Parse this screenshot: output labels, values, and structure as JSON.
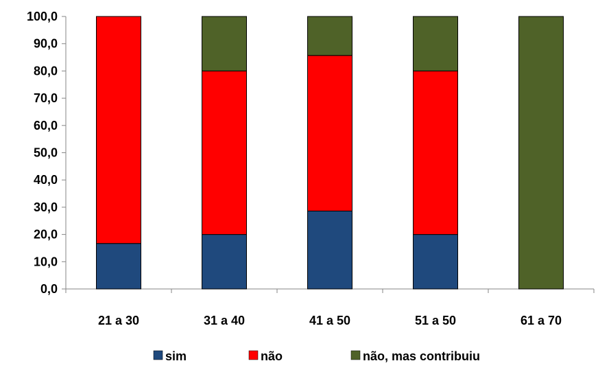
{
  "chart_data": {
    "type": "bar",
    "stacked": true,
    "categories": [
      "21 a 30",
      "31 a 40",
      "41 a 50",
      "51 a 50",
      "61 a 70"
    ],
    "series": [
      {
        "name": "sim",
        "color": "#1f497d",
        "values": [
          16.7,
          20.0,
          28.6,
          20.0,
          0.0
        ]
      },
      {
        "name": "não",
        "color": "#ff0000",
        "values": [
          83.3,
          60.0,
          57.1,
          60.0,
          0.0
        ]
      },
      {
        "name": "não, mas contribuiu",
        "color": "#4f6228",
        "values": [
          0.0,
          20.0,
          14.3,
          20.0,
          100.0
        ]
      }
    ],
    "ylim": [
      0,
      100
    ],
    "yticks": [
      "0,0",
      "10,0",
      "20,0",
      "30,0",
      "40,0",
      "50,0",
      "60,0",
      "70,0",
      "80,0",
      "90,0",
      "100,0"
    ],
    "grid": false,
    "legend_position": "bottom"
  }
}
